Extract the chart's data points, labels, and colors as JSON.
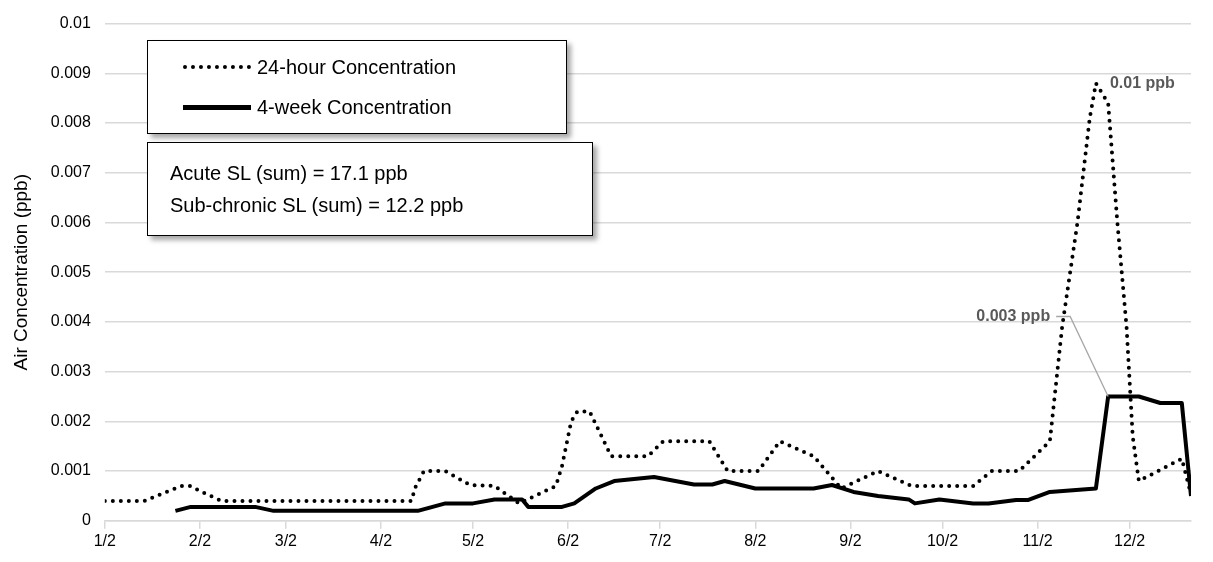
{
  "chart_data": {
    "type": "line",
    "ylabel": "Air Concentration (ppb)",
    "xlim": [
      "--01-02",
      "--12-22"
    ],
    "xticks": [
      {
        "value": "--01-02",
        "label": "1/2"
      },
      {
        "value": "--02-02",
        "label": "2/2"
      },
      {
        "value": "--03-02",
        "label": "3/2"
      },
      {
        "value": "--04-02",
        "label": "4/2"
      },
      {
        "value": "--05-02",
        "label": "5/2"
      },
      {
        "value": "--06-02",
        "label": "6/2"
      },
      {
        "value": "--07-02",
        "label": "7/2"
      },
      {
        "value": "--08-02",
        "label": "8/2"
      },
      {
        "value": "--09-02",
        "label": "9/2"
      },
      {
        "value": "--10-02",
        "label": "10/2"
      },
      {
        "value": "--11-02",
        "label": "11/2"
      },
      {
        "value": "--12-02",
        "label": "12/2"
      }
    ],
    "ylim": [
      0,
      0.01
    ],
    "yticks": [
      0,
      0.001,
      0.002,
      0.003,
      0.004,
      0.005,
      0.006,
      0.007,
      0.008,
      0.009,
      0.01
    ],
    "grid": "y",
    "legend": "top left",
    "marker": "none",
    "series": [
      {
        "name": "24-hour Concentration",
        "color": "#000000",
        "line_style": "dotted",
        "x": [
          "--01-02",
          "--01-15",
          "--01-22",
          "--01-27",
          "--01-30",
          "--02-02",
          "--02-09",
          "--04-12",
          "--04-13",
          "--04-16",
          "--04-23",
          "--05-01",
          "--05-09",
          "--05-17",
          "--05-29",
          "--05-31",
          "--06-03",
          "--06-05",
          "--06-09",
          "--06-16",
          "--06-28",
          "--07-03",
          "--07-18",
          "--07-24",
          "--08-03",
          "--08-10",
          "--08-21",
          "--08-30",
          "--09-11",
          "--09-22",
          "--10-12",
          "--10-18",
          "--10-27",
          "--11-06",
          "--11-10",
          "--11-15",
          "--11-19",
          "--11-21",
          "--11-25",
          "--11-28",
          "--12-01",
          "--12-03",
          "--12-05",
          "--12-19",
          "--12-22"
        ],
        "values": [
          0.0004,
          0.0004,
          0.00058,
          0.0007,
          0.0007,
          0.0006,
          0.0004,
          0.0004,
          0.00065,
          0.001,
          0.001,
          0.00072,
          0.0007,
          0.00035,
          0.0007,
          0.0011,
          0.002,
          0.0022,
          0.0022,
          0.0013,
          0.0013,
          0.0016,
          0.0016,
          0.001,
          0.001,
          0.0016,
          0.0013,
          0.00065,
          0.001,
          0.0007,
          0.0007,
          0.001,
          0.001,
          0.0016,
          0.0039,
          0.006,
          0.0081,
          0.0088,
          0.0084,
          0.006,
          0.0039,
          0.0017,
          0.0008,
          0.00125,
          0.00053
        ]
      },
      {
        "name": "4-week Concentration",
        "color": "#000000",
        "line_style": "solid",
        "x": [
          "--01-25",
          "--01-30",
          "--02-20",
          "--02-26",
          "--04-14",
          "--04-23",
          "--05-02",
          "--05-09",
          "--05-18",
          "--05-20",
          "--05-31",
          "--06-04",
          "--06-11",
          "--06-17",
          "--06-30",
          "--07-13",
          "--07-19",
          "--07-23",
          "--08-02",
          "--08-21",
          "--08-27",
          "--09-03",
          "--09-11",
          "--09-21",
          "--09-23",
          "--10-01",
          "--10-12",
          "--10-17",
          "--10-26",
          "--10-30",
          "--11-06",
          "--11-21",
          "--11-25",
          "--12-05",
          "--12-12",
          "--12-19",
          "--12-22"
        ],
        "values": [
          0.0002,
          0.00028,
          0.00028,
          0.0002,
          0.0002,
          0.00035,
          0.00035,
          0.00043,
          0.00043,
          0.00028,
          0.00028,
          0.00035,
          0.00065,
          0.0008,
          0.00088,
          0.00073,
          0.00073,
          0.0008,
          0.00065,
          0.00065,
          0.00072,
          0.00058,
          0.0005,
          0.00043,
          0.00035,
          0.00043,
          0.00035,
          0.00035,
          0.00042,
          0.00042,
          0.00058,
          0.00065,
          0.0025,
          0.0025,
          0.00237,
          0.00237,
          0.0005
        ]
      }
    ],
    "annotations": [
      "Acute SL (sum) = 17.1 ppb",
      "Sub-chronic SL (sum) = 12.2 ppb",
      {
        "text": "0.01 ppb",
        "x": "--11-21",
        "y": 0.0088
      },
      {
        "text": "0.003 ppb",
        "x": "--11-25",
        "y": 0.0025
      }
    ]
  }
}
